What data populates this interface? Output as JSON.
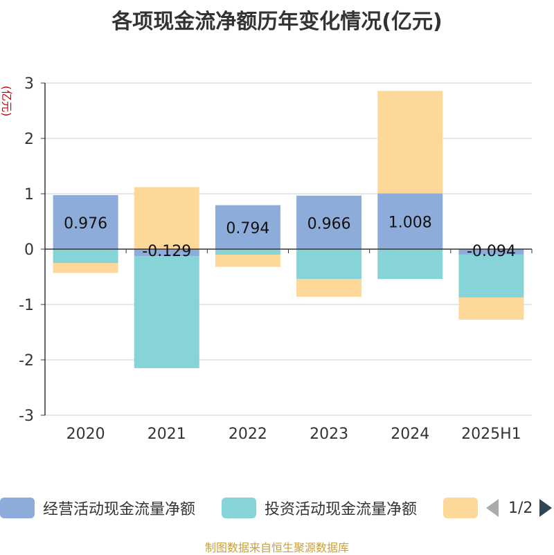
{
  "title": "各项现金流净额历年变化情况(亿元)",
  "source_note": "制图数据来自恒生聚源数据库",
  "pager": {
    "text": "1/2"
  },
  "colors": {
    "operating": "#8eacd9",
    "investing": "#86d4d8",
    "financing": "#fdd898",
    "grid": "#cccccc",
    "axis": "#333333",
    "ylabel": "#cc0000"
  },
  "chart_data": {
    "type": "bar",
    "stacked": true,
    "title": "各项现金流净额历年变化情况(亿元)",
    "ylabel": "(亿元)",
    "ylim": [
      -3,
      3
    ],
    "yticks": [
      3,
      2,
      1,
      0,
      -1,
      -2,
      -3
    ],
    "categories": [
      "2020",
      "2021",
      "2022",
      "2023",
      "2024",
      "2025H1"
    ],
    "grid": true,
    "legend_position": "bottom",
    "series": [
      {
        "name": "经营活动现金流量净额",
        "color_key": "operating",
        "label": true,
        "values": [
          0.976,
          -0.129,
          0.794,
          0.966,
          1.008,
          -0.094
        ]
      },
      {
        "name": "投资活动现金流量净额",
        "color_key": "investing",
        "label": false,
        "values": [
          -0.25,
          -2.02,
          -0.1,
          -0.54,
          -0.54,
          -0.78
        ]
      },
      {
        "name": "",
        "color_key": "financing",
        "label": false,
        "values": [
          -0.18,
          1.12,
          -0.22,
          -0.32,
          1.85,
          -0.4
        ]
      }
    ]
  }
}
